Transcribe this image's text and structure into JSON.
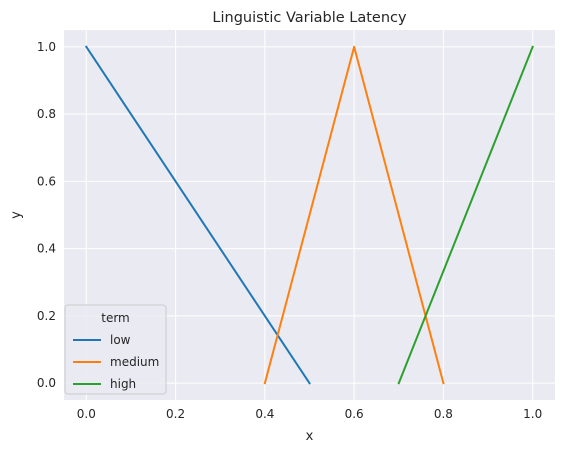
{
  "chart_data": {
    "type": "line",
    "title": "Linguistic Variable Latency",
    "xlabel": "x",
    "ylabel": "y",
    "xlim": [
      -0.05,
      1.05
    ],
    "ylim": [
      -0.05,
      1.05
    ],
    "xticks": [
      "0.0",
      "0.2",
      "0.4",
      "0.6",
      "0.8",
      "1.0"
    ],
    "yticks": [
      "0.0",
      "0.2",
      "0.4",
      "0.6",
      "0.8",
      "1.0"
    ],
    "grid": true,
    "legend": {
      "title": "term",
      "placement": "lower-left"
    },
    "series": [
      {
        "name": "low",
        "color": "#1f77b4",
        "x": [
          0.0,
          0.5
        ],
        "y": [
          1.0,
          0.0
        ]
      },
      {
        "name": "medium",
        "color": "#ff7f0e",
        "x": [
          0.4,
          0.6,
          0.8
        ],
        "y": [
          0.0,
          1.0,
          0.0
        ]
      },
      {
        "name": "high",
        "color": "#2ca02c",
        "x": [
          0.7,
          1.0
        ],
        "y": [
          0.0,
          1.0
        ]
      }
    ],
    "background": "#eaeaf2",
    "grid_color": "#ffffff"
  }
}
